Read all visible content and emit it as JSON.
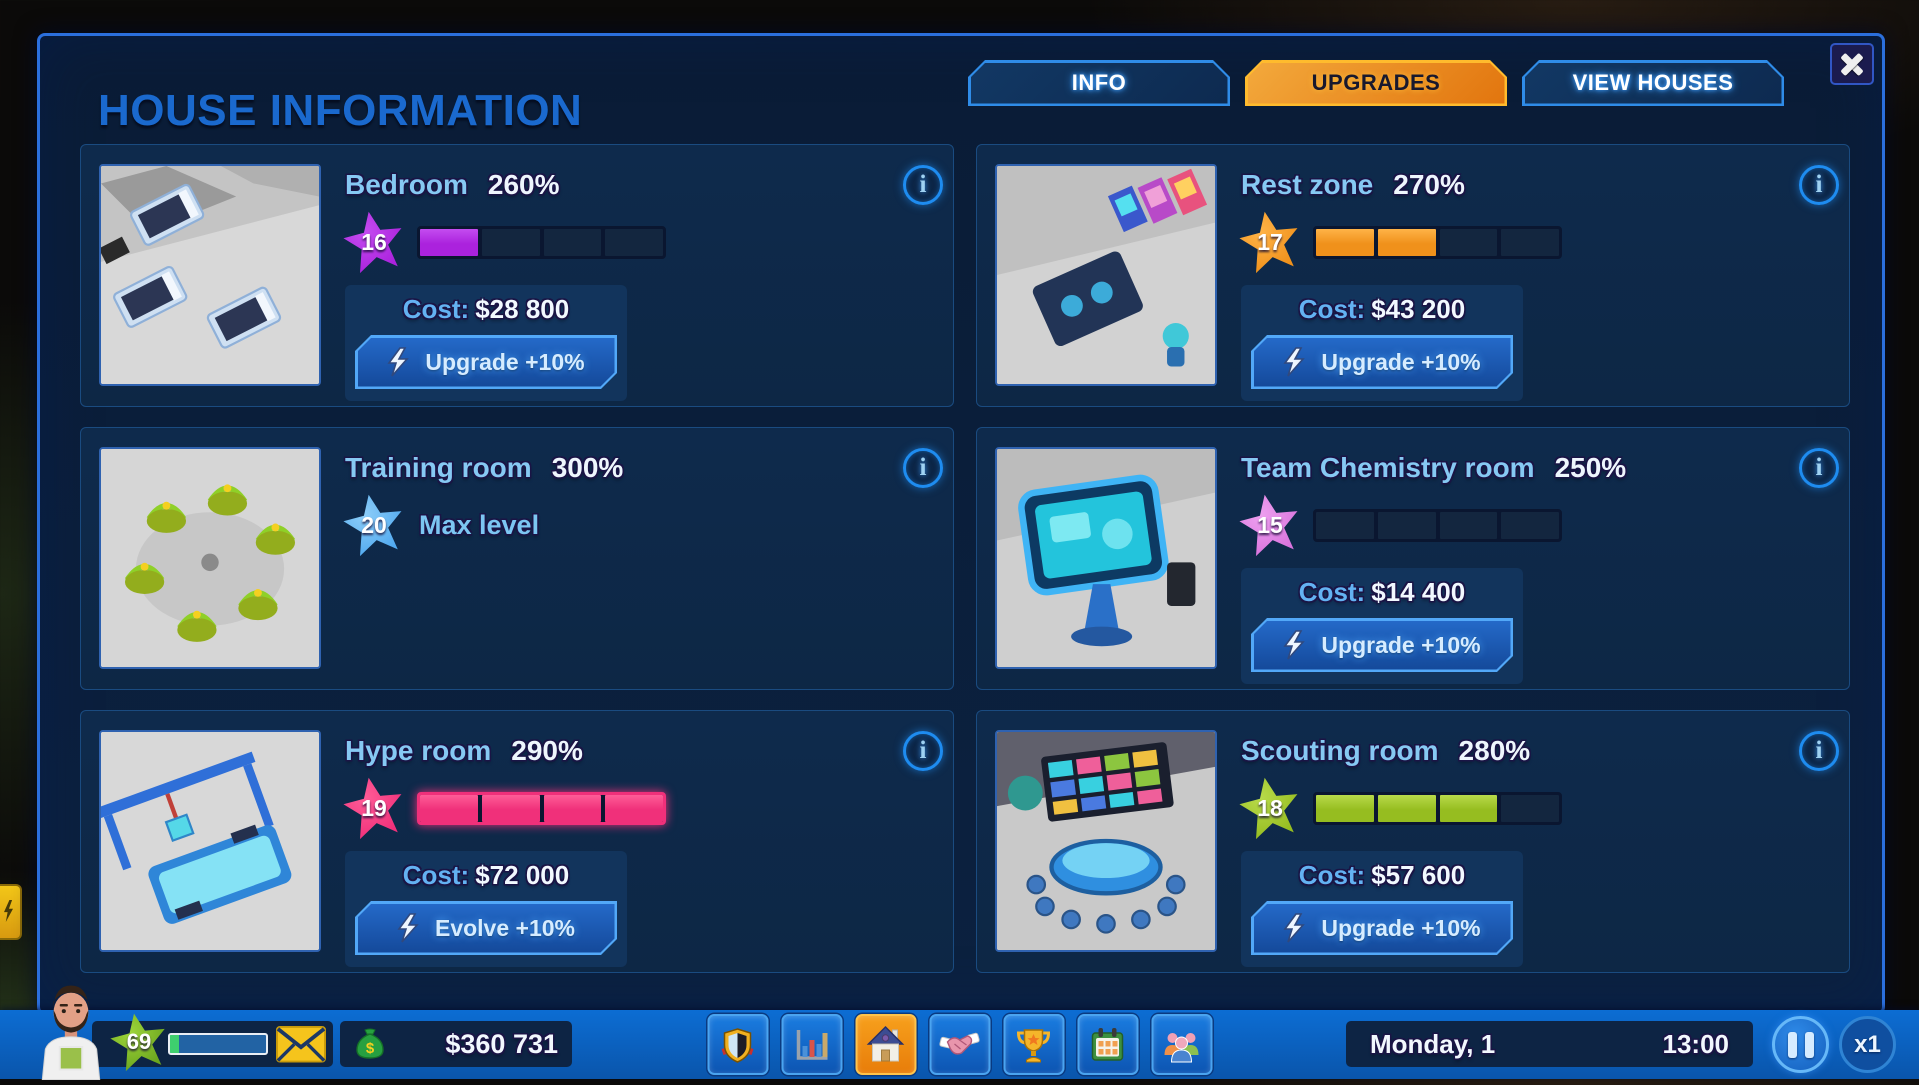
{
  "header": {
    "title": "HOUSE INFORMATION",
    "tabs": [
      {
        "label": "INFO",
        "active": false
      },
      {
        "label": "UPGRADES",
        "active": true
      },
      {
        "label": "VIEW HOUSES",
        "active": false
      }
    ]
  },
  "icons": {
    "close": "close-icon",
    "info": "info-icon",
    "info_glyph": "i",
    "upgrade": "lightning-bolt-icon"
  },
  "rooms": [
    {
      "name": "Bedroom",
      "percent": "260%",
      "level": "16",
      "accent": "#ab22dd",
      "accent_soft": "#c44cf0",
      "filled": 1,
      "total": 4,
      "cost_label": "Cost:",
      "cost": "$28 800",
      "button_label": "Upgrade +10%",
      "max": false
    },
    {
      "name": "Rest zone",
      "percent": "270%",
      "level": "17",
      "accent": "#f0911b",
      "accent_soft": "#ffb347",
      "filled": 2,
      "total": 4,
      "cost_label": "Cost:",
      "cost": "$43 200",
      "button_label": "Upgrade +10%",
      "max": false
    },
    {
      "name": "Training room",
      "percent": "300%",
      "level": "20",
      "accent": "#52aaf0",
      "accent_soft": "#8ccdf8",
      "filled": 0,
      "total": 4,
      "max": true,
      "max_label": "Max level"
    },
    {
      "name": "Team Chemistry room",
      "percent": "250%",
      "level": "15",
      "accent": "#d973dd",
      "accent_soft": "#eda0ef",
      "filled": 0,
      "total": 4,
      "cost_label": "Cost:",
      "cost": "$14 400",
      "button_label": "Upgrade +10%",
      "max": false
    },
    {
      "name": "Hype room",
      "percent": "290%",
      "level": "19",
      "accent": "#f0307a",
      "accent_soft": "#ff5c97",
      "filled": 4,
      "total": 4,
      "cost_label": "Cost:",
      "cost": "$72 000",
      "button_label": "Evolve +10%",
      "max": false
    },
    {
      "name": "Scouting room",
      "percent": "280%",
      "level": "18",
      "accent": "#96bd20",
      "accent_soft": "#b8da4a",
      "filled": 3,
      "total": 4,
      "cost_label": "Cost:",
      "cost": "$57 600",
      "button_label": "Upgrade +10%",
      "max": false
    }
  ],
  "hud": {
    "level": "69",
    "money": "$360 731",
    "date": "Monday, 1",
    "time": "13:00",
    "speed_label": "x1",
    "nav": [
      {
        "icon": "club-shield-icon",
        "active": false
      },
      {
        "icon": "stats-chart-icon",
        "active": false
      },
      {
        "icon": "house-icon",
        "active": true
      },
      {
        "icon": "sponsors-handshake-icon",
        "active": false
      },
      {
        "icon": "tournaments-trophy-icon",
        "active": false
      },
      {
        "icon": "calendar-icon",
        "active": false
      },
      {
        "icon": "team-roster-icon",
        "active": false
      }
    ]
  }
}
